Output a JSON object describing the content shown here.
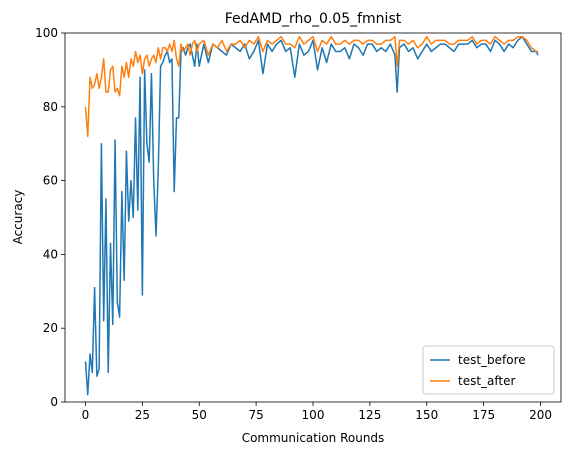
{
  "chart_data": {
    "type": "line",
    "title": "FedAMD_rho_0.05_fmnist",
    "xlabel": "Communication Rounds",
    "ylabel": "Accuracy",
    "xlim": [
      -9,
      209
    ],
    "ylim": [
      0,
      100
    ],
    "xticks": [
      0,
      25,
      50,
      75,
      100,
      125,
      150,
      175,
      200
    ],
    "yticks": [
      0,
      20,
      40,
      60,
      80,
      100
    ],
    "legend_position": "lower-right",
    "grid": false,
    "series": [
      {
        "name": "test_before",
        "color": "#1f77b4",
        "x": [
          0,
          1,
          2,
          3,
          4,
          5,
          6,
          7,
          8,
          9,
          10,
          11,
          12,
          13,
          14,
          15,
          16,
          17,
          18,
          19,
          20,
          21,
          22,
          23,
          24,
          25,
          26,
          27,
          28,
          29,
          30,
          31,
          32,
          33,
          34,
          35,
          36,
          37,
          38,
          39,
          40,
          41,
          42,
          43,
          44,
          45,
          46,
          47,
          48,
          49,
          50,
          52,
          54,
          56,
          58,
          60,
          62,
          64,
          66,
          68,
          70,
          72,
          74,
          76,
          78,
          80,
          82,
          84,
          86,
          88,
          90,
          92,
          94,
          96,
          98,
          100,
          102,
          104,
          106,
          108,
          110,
          112,
          114,
          116,
          118,
          120,
          122,
          124,
          126,
          128,
          130,
          132,
          134,
          136,
          137,
          138,
          140,
          142,
          144,
          146,
          148,
          150,
          152,
          154,
          156,
          158,
          160,
          162,
          164,
          166,
          168,
          170,
          172,
          174,
          176,
          178,
          180,
          182,
          184,
          186,
          188,
          190,
          192,
          194,
          196,
          198,
          199
        ],
        "values": [
          11,
          2,
          13,
          8,
          31,
          7,
          9,
          70,
          22,
          55,
          8,
          43,
          21,
          71,
          27,
          23,
          57,
          33,
          68,
          49,
          60,
          50,
          77,
          52,
          88,
          29,
          90,
          70,
          65,
          89,
          60,
          45,
          63,
          91,
          92,
          94,
          95,
          92,
          93,
          57,
          77,
          77,
          95,
          96,
          94,
          96,
          97,
          94,
          91,
          97,
          91,
          97,
          92,
          97,
          96,
          95,
          94,
          97,
          96,
          95,
          97,
          93,
          95,
          98,
          89,
          97,
          95,
          97,
          98,
          95,
          96,
          88,
          97,
          94,
          95,
          98,
          90,
          96,
          92,
          97,
          95,
          95,
          96,
          93,
          97,
          96,
          94,
          97,
          97,
          95,
          96,
          95,
          97,
          94,
          84,
          96,
          97,
          95,
          96,
          93,
          95,
          97,
          95,
          96,
          97,
          97,
          96,
          95,
          97,
          97,
          97,
          98,
          96,
          97,
          97,
          95,
          98,
          97,
          95,
          97,
          96,
          98,
          99,
          97,
          95,
          95,
          94
        ]
      },
      {
        "name": "test_after",
        "color": "#ff7f0e",
        "x": [
          0,
          1,
          2,
          3,
          4,
          5,
          6,
          7,
          8,
          9,
          10,
          11,
          12,
          13,
          14,
          15,
          16,
          17,
          18,
          19,
          20,
          21,
          22,
          23,
          24,
          25,
          26,
          27,
          28,
          29,
          30,
          31,
          32,
          33,
          34,
          35,
          36,
          37,
          38,
          39,
          40,
          41,
          42,
          43,
          44,
          45,
          46,
          47,
          48,
          49,
          50,
          52,
          54,
          56,
          58,
          60,
          62,
          64,
          66,
          68,
          70,
          72,
          74,
          76,
          78,
          80,
          82,
          84,
          86,
          88,
          90,
          92,
          94,
          96,
          98,
          100,
          102,
          104,
          106,
          108,
          110,
          112,
          114,
          116,
          118,
          120,
          122,
          124,
          126,
          128,
          130,
          132,
          134,
          136,
          137,
          138,
          140,
          142,
          144,
          146,
          148,
          150,
          152,
          154,
          156,
          158,
          160,
          162,
          164,
          166,
          168,
          170,
          172,
          174,
          176,
          178,
          180,
          182,
          184,
          186,
          188,
          190,
          192,
          194,
          196,
          198,
          199
        ],
        "values": [
          80,
          72,
          88,
          85,
          86,
          89,
          85,
          88,
          93,
          84,
          84,
          90,
          91,
          84,
          85,
          83,
          91,
          88,
          92,
          88,
          93,
          91,
          95,
          92,
          94,
          89,
          93,
          94,
          91,
          93,
          94,
          92,
          96,
          93,
          96,
          96,
          95,
          97,
          95,
          98,
          93,
          91,
          97,
          95,
          96,
          97,
          94,
          97,
          98,
          95,
          97,
          98,
          94,
          97,
          96,
          98,
          95,
          97,
          97,
          98,
          96,
          98,
          97,
          99,
          95,
          98,
          97,
          98,
          99,
          97,
          97,
          96,
          99,
          97,
          98,
          99,
          95,
          98,
          97,
          99,
          97,
          97,
          98,
          97,
          98,
          98,
          97,
          98,
          98,
          97,
          97,
          98,
          98,
          99,
          91,
          98,
          98,
          97,
          98,
          96,
          97,
          99,
          97,
          98,
          98,
          98,
          97,
          97,
          98,
          98,
          98,
          99,
          97,
          98,
          98,
          97,
          99,
          98,
          97,
          98,
          98,
          99,
          99,
          98,
          96,
          95,
          95
        ]
      }
    ]
  }
}
